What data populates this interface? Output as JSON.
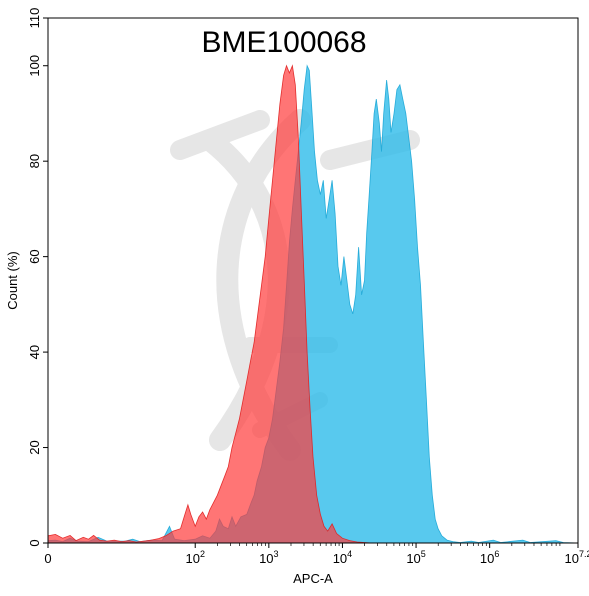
{
  "chart_data": {
    "type": "area",
    "title": "BME100068",
    "xlabel": "APC-A",
    "ylabel": "Count (%)",
    "x_scale": "log",
    "xlim": [
      0,
      7.2
    ],
    "ylim": [
      0,
      110
    ],
    "x_ticks": [
      {
        "pos": 0,
        "base": "0",
        "exp": ""
      },
      {
        "pos": 2,
        "base": "10",
        "exp": "2"
      },
      {
        "pos": 3,
        "base": "10",
        "exp": "3"
      },
      {
        "pos": 4,
        "base": "10",
        "exp": "4"
      },
      {
        "pos": 5,
        "base": "10",
        "exp": "5"
      },
      {
        "pos": 6,
        "base": "10",
        "exp": "6"
      },
      {
        "pos": 7.2,
        "base": "10",
        "exp": "7.2"
      }
    ],
    "y_ticks": [
      0,
      20,
      40,
      60,
      80,
      100,
      110
    ],
    "grid": false,
    "colors": {
      "series_blue_fill": "#2EBBEA",
      "series_blue_stroke": "#1BA6D6",
      "series_red_fill": "#FF3B3B",
      "series_red_stroke": "#E02020",
      "watermark": "#E6E6E6"
    },
    "series": [
      {
        "color": "blue",
        "points": [
          [
            0.0,
            0.5
          ],
          [
            0.1,
            0.6
          ],
          [
            0.2,
            0.3
          ],
          [
            0.3,
            1.0
          ],
          [
            0.4,
            0.4
          ],
          [
            0.55,
            0.3
          ],
          [
            0.68,
            1.2
          ],
          [
            0.8,
            0.4
          ],
          [
            1.05,
            0.4
          ],
          [
            1.15,
            0.8
          ],
          [
            1.25,
            0.3
          ],
          [
            1.4,
            0.6
          ],
          [
            1.55,
            0.5
          ],
          [
            1.65,
            3.5
          ],
          [
            1.72,
            0.8
          ],
          [
            1.85,
            0.5
          ],
          [
            2.0,
            0.8
          ],
          [
            2.1,
            1.5
          ],
          [
            2.2,
            1.0
          ],
          [
            2.28,
            2.5
          ],
          [
            2.33,
            5.0
          ],
          [
            2.38,
            3.5
          ],
          [
            2.45,
            3.0
          ],
          [
            2.5,
            5.5
          ],
          [
            2.55,
            3.5
          ],
          [
            2.62,
            5.5
          ],
          [
            2.7,
            6.0
          ],
          [
            2.76,
            8.5
          ],
          [
            2.8,
            10.0
          ],
          [
            2.84,
            13.0
          ],
          [
            2.9,
            16.0
          ],
          [
            2.95,
            20.0
          ],
          [
            3.0,
            22.0
          ],
          [
            3.05,
            26.0
          ],
          [
            3.1,
            32.0
          ],
          [
            3.15,
            38.0
          ],
          [
            3.2,
            45.0
          ],
          [
            3.25,
            56.0
          ],
          [
            3.28,
            63.0
          ],
          [
            3.32,
            70.0
          ],
          [
            3.36,
            76.0
          ],
          [
            3.4,
            82.0
          ],
          [
            3.44,
            88.0
          ],
          [
            3.48,
            95.0
          ],
          [
            3.52,
            100.0
          ],
          [
            3.55,
            99.0
          ],
          [
            3.58,
            92.0
          ],
          [
            3.62,
            82.0
          ],
          [
            3.66,
            76.0
          ],
          [
            3.7,
            73.0
          ],
          [
            3.74,
            76.0
          ],
          [
            3.78,
            68.0
          ],
          [
            3.82,
            72.0
          ],
          [
            3.86,
            76.0
          ],
          [
            3.9,
            69.0
          ],
          [
            3.94,
            58.0
          ],
          [
            3.98,
            54.0
          ],
          [
            4.02,
            60.0
          ],
          [
            4.06,
            55.0
          ],
          [
            4.1,
            50.0
          ],
          [
            4.14,
            48.0
          ],
          [
            4.18,
            52.0
          ],
          [
            4.22,
            62.0
          ],
          [
            4.26,
            52.0
          ],
          [
            4.3,
            55.0
          ],
          [
            4.33,
            65.0
          ],
          [
            4.36,
            72.0
          ],
          [
            4.4,
            82.0
          ],
          [
            4.43,
            90.0
          ],
          [
            4.46,
            93.0
          ],
          [
            4.5,
            88.0
          ],
          [
            4.53,
            82.0
          ],
          [
            4.56,
            90.0
          ],
          [
            4.6,
            97.0
          ],
          [
            4.63,
            93.0
          ],
          [
            4.66,
            86.0
          ],
          [
            4.7,
            90.0
          ],
          [
            4.74,
            95.0
          ],
          [
            4.78,
            96.0
          ],
          [
            4.82,
            93.0
          ],
          [
            4.86,
            90.0
          ],
          [
            4.9,
            85.0
          ],
          [
            4.94,
            80.0
          ],
          [
            4.98,
            72.0
          ],
          [
            5.02,
            62.0
          ],
          [
            5.06,
            54.0
          ],
          [
            5.1,
            42.0
          ],
          [
            5.14,
            30.0
          ],
          [
            5.18,
            18.0
          ],
          [
            5.22,
            10.0
          ],
          [
            5.26,
            5.0
          ],
          [
            5.3,
            3.0
          ],
          [
            5.35,
            1.5
          ],
          [
            5.42,
            0.6
          ],
          [
            5.5,
            0.3
          ],
          [
            5.6,
            0.1
          ],
          [
            5.75,
            0.4
          ],
          [
            5.85,
            0.1
          ],
          [
            6.05,
            0.6
          ],
          [
            6.15,
            0.1
          ],
          [
            6.45,
            0.6
          ],
          [
            6.55,
            0.1
          ],
          [
            6.9,
            0.5
          ],
          [
            7.0,
            0.1
          ],
          [
            7.2,
            0.0
          ]
        ]
      },
      {
        "color": "red",
        "points": [
          [
            0.0,
            1.5
          ],
          [
            0.1,
            1.8
          ],
          [
            0.2,
            1.0
          ],
          [
            0.3,
            1.6
          ],
          [
            0.38,
            0.5
          ],
          [
            0.48,
            1.2
          ],
          [
            0.55,
            0.8
          ],
          [
            0.62,
            1.6
          ],
          [
            0.7,
            0.6
          ],
          [
            0.8,
            0.4
          ],
          [
            0.9,
            0.6
          ],
          [
            1.0,
            0.3
          ],
          [
            1.1,
            0.5
          ],
          [
            1.2,
            0.2
          ],
          [
            1.3,
            0.4
          ],
          [
            1.4,
            0.6
          ],
          [
            1.5,
            0.9
          ],
          [
            1.6,
            1.5
          ],
          [
            1.7,
            2.5
          ],
          [
            1.8,
            3.0
          ],
          [
            1.86,
            6.0
          ],
          [
            1.9,
            8.0
          ],
          [
            1.94,
            6.0
          ],
          [
            2.0,
            3.5
          ],
          [
            2.05,
            5.5
          ],
          [
            2.1,
            6.5
          ],
          [
            2.15,
            5.0
          ],
          [
            2.2,
            7.0
          ],
          [
            2.25,
            8.5
          ],
          [
            2.3,
            10.0
          ],
          [
            2.35,
            12.0
          ],
          [
            2.4,
            14.0
          ],
          [
            2.45,
            16.0
          ],
          [
            2.5,
            20.0
          ],
          [
            2.55,
            23.0
          ],
          [
            2.6,
            26.0
          ],
          [
            2.65,
            30.0
          ],
          [
            2.7,
            34.0
          ],
          [
            2.75,
            38.0
          ],
          [
            2.8,
            42.0
          ],
          [
            2.85,
            48.0
          ],
          [
            2.9,
            54.0
          ],
          [
            2.95,
            60.0
          ],
          [
            3.0,
            68.0
          ],
          [
            3.05,
            76.0
          ],
          [
            3.1,
            84.0
          ],
          [
            3.15,
            92.0
          ],
          [
            3.2,
            98.0
          ],
          [
            3.24,
            100.0
          ],
          [
            3.28,
            98.5
          ],
          [
            3.32,
            100.0
          ],
          [
            3.36,
            96.0
          ],
          [
            3.4,
            85.0
          ],
          [
            3.44,
            70.0
          ],
          [
            3.48,
            55.0
          ],
          [
            3.52,
            40.0
          ],
          [
            3.56,
            28.0
          ],
          [
            3.6,
            18.0
          ],
          [
            3.65,
            10.0
          ],
          [
            3.7,
            6.0
          ],
          [
            3.75,
            3.5
          ],
          [
            3.8,
            2.5
          ],
          [
            3.86,
            4.0
          ],
          [
            3.92,
            2.0
          ],
          [
            4.0,
            1.0
          ],
          [
            4.1,
            0.5
          ],
          [
            4.2,
            0.2
          ],
          [
            4.4,
            0.0
          ],
          [
            7.2,
            0.0
          ]
        ]
      }
    ]
  }
}
